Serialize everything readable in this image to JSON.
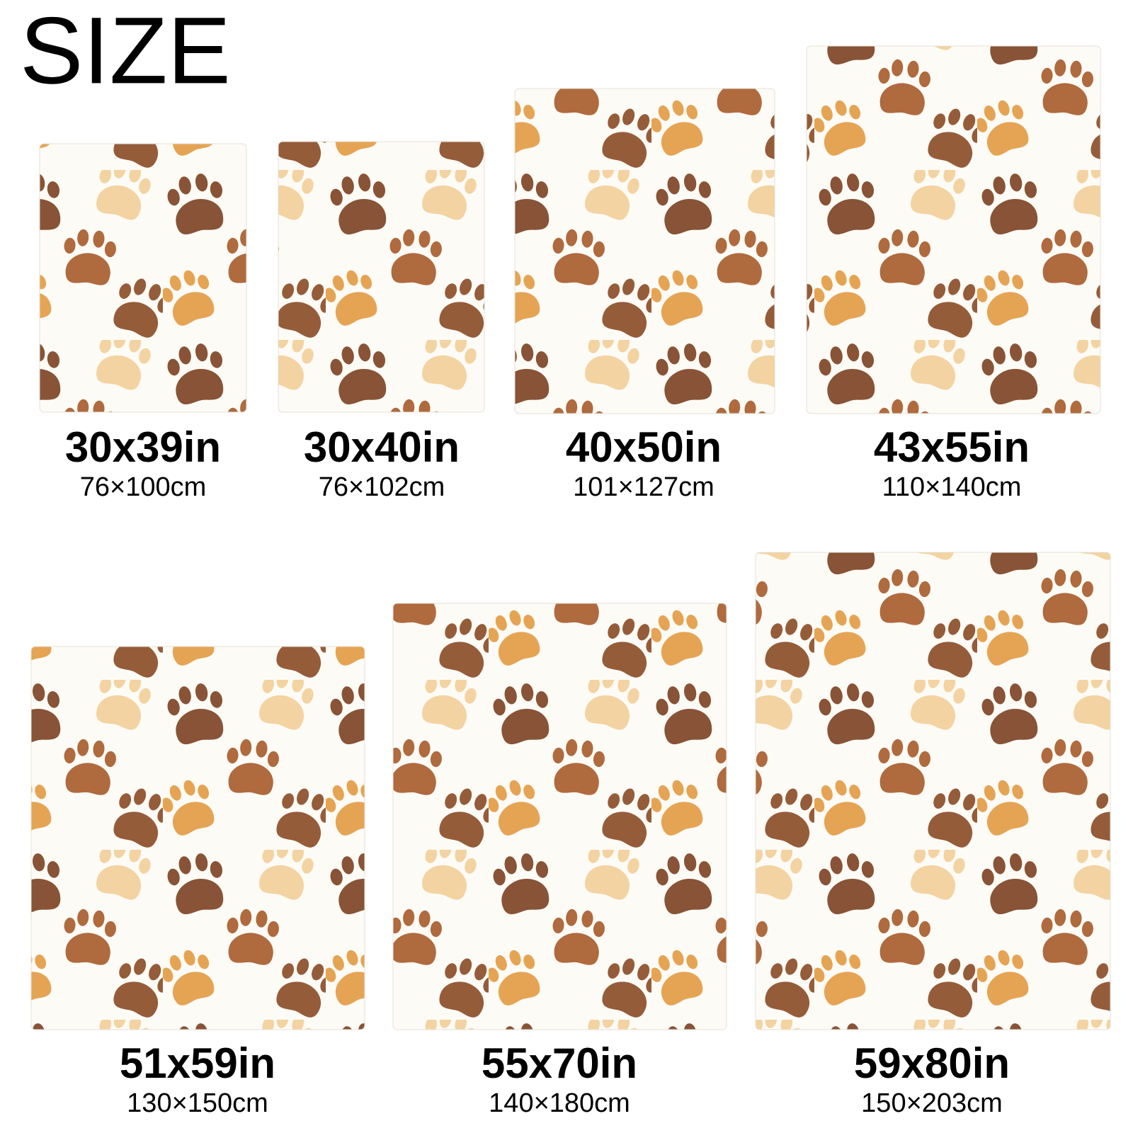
{
  "title": "SIZE",
  "sizes": [
    {
      "inches": "30x39in",
      "cm": "76×100cm"
    },
    {
      "inches": "30x40in",
      "cm": "76×102cm"
    },
    {
      "inches": "40x50in",
      "cm": "101×127cm"
    },
    {
      "inches": "43x55in",
      "cm": "110×140cm"
    },
    {
      "inches": "51x59in",
      "cm": "130×150cm"
    },
    {
      "inches": "55x70in",
      "cm": "140×180cm"
    },
    {
      "inches": "59x80in",
      "cm": "150×203cm"
    }
  ]
}
